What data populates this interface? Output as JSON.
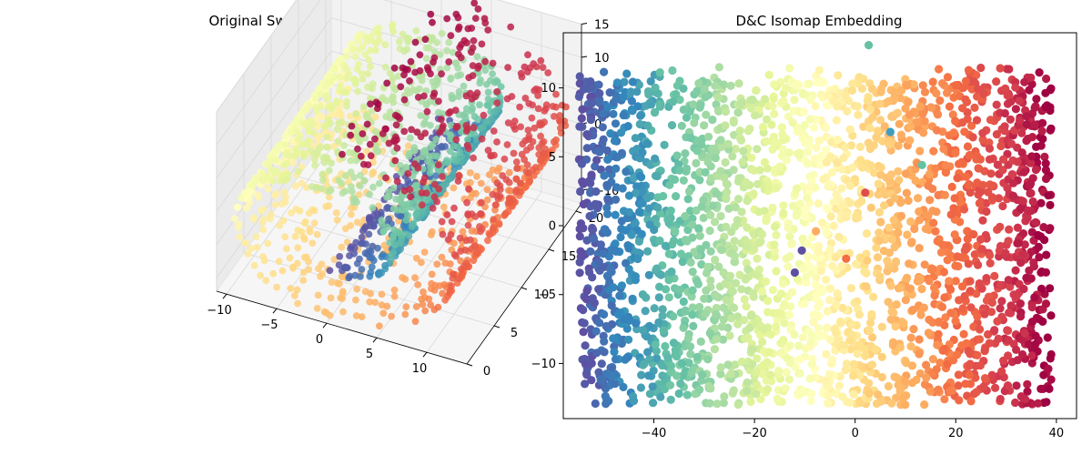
{
  "figure": {
    "background": "#ffffff",
    "colormap": "Spectral",
    "colormap_stops": [
      "#5e4fa2",
      "#3288bd",
      "#66c2a5",
      "#abdda4",
      "#e6f598",
      "#ffffbf",
      "#fee08b",
      "#fdae61",
      "#f46d43",
      "#d53e4f",
      "#9e0142"
    ]
  },
  "chart_data": [
    {
      "type": "scatter",
      "projection": "3d",
      "title": "Original Swiss Roll",
      "x_ticks": [
        "−10",
        "−5",
        "0",
        "5",
        "10"
      ],
      "y_ticks": [
        "0",
        "5",
        "10",
        "15",
        "20"
      ],
      "z_ticks": [
        "15",
        "10",
        "5",
        "0",
        "−5",
        "−10"
      ],
      "xlim": [
        -11,
        14
      ],
      "ylim": [
        0,
        21
      ],
      "zlim": [
        -12,
        15
      ],
      "grid": true,
      "description_of_data": "Swiss roll manifold: points on a spiral sheet, colored by position along the roll",
      "color_by": "roll parameter t",
      "t_range": [
        4.7,
        14.1
      ],
      "height_range": [
        0,
        21
      ]
    },
    {
      "type": "scatter",
      "title": "D&C Isomap Embedding",
      "x_ticks": [
        "−40",
        "−20",
        "0",
        "20",
        "40"
      ],
      "y_ticks": [
        "10",
        "5",
        "0",
        "−5",
        "−10"
      ],
      "xlim": [
        -58,
        44
      ],
      "ylim": [
        -14,
        14
      ],
      "grid": false,
      "color_by": "roll parameter t",
      "x_range": [
        -55,
        39
      ],
      "y_range": [
        -13,
        11.5
      ],
      "outliers": [
        {
          "x": 2.7,
          "y": 13.1,
          "color": "#66c2a5"
        },
        {
          "x": 7.0,
          "y": 6.8,
          "color": "#3e9ec0"
        },
        {
          "x": 13.3,
          "y": 4.4,
          "color": "#66c2a5"
        },
        {
          "x": 2.0,
          "y": 2.4,
          "color": "#e04c4a"
        },
        {
          "x": -7.8,
          "y": -0.4,
          "color": "#fdae61"
        },
        {
          "x": -10.6,
          "y": -1.8,
          "color": "#5e4fa2"
        },
        {
          "x": -12.0,
          "y": -3.4,
          "color": "#5e4fa2"
        },
        {
          "x": -1.8,
          "y": -2.4,
          "color": "#f46d43"
        }
      ]
    }
  ]
}
